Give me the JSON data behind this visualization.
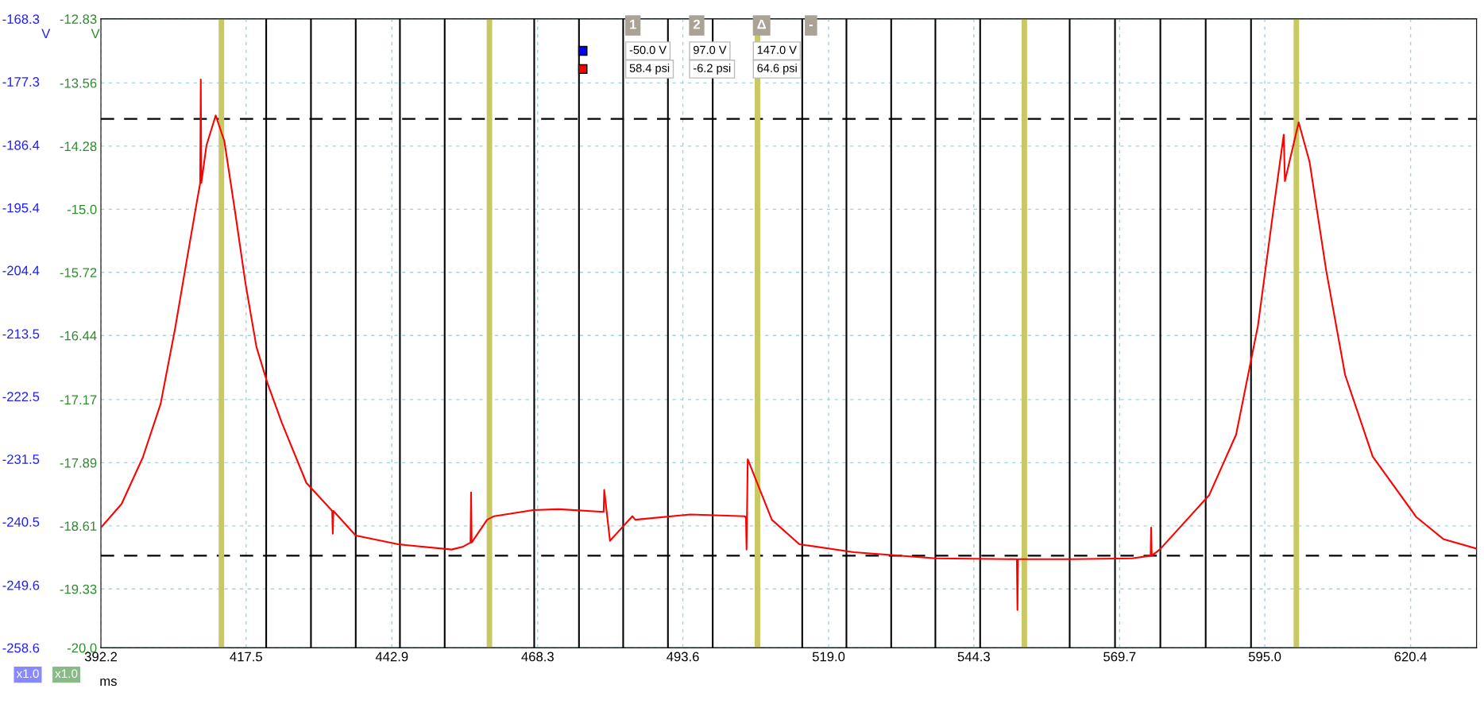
{
  "chart_data": {
    "type": "line",
    "xlabel": "ms",
    "ylabel": "V",
    "y2label": "V",
    "xlim": [
      392.2,
      631.9
    ],
    "xticks": [
      392.2,
      417.5,
      442.9,
      468.3,
      493.6,
      {
        "value": 519.0,
        "label": "519.0"
      },
      544.3,
      569.7,
      {
        "value": 595.0,
        "label": "595.0"
      },
      620.4
    ],
    "ylim": [
      -20.0,
      -12.83
    ],
    "yticks": [
      {
        "value": -20.0,
        "label": "-20.0"
      },
      -19.33,
      -18.61,
      -17.89,
      -17.17,
      -16.44,
      -15.72,
      {
        "value": -15.0,
        "label": "-15.0"
      },
      -14.28,
      -13.56,
      -12.83
    ],
    "y2lim": [
      -258.6,
      -168.3
    ],
    "y2ticks": [
      -258.6,
      -249.6,
      -240.5,
      -231.5,
      -222.5,
      -213.5,
      -204.4,
      -195.4,
      -186.4,
      -177.3,
      -168.3
    ],
    "grid": true,
    "line_style": "solid",
    "marker": "none",
    "series": [
      {
        "color": "#ff0000",
        "x": [
          392.2,
          395.8,
          399.5,
          402.6,
          405.1,
          406.9,
          408.8,
          409.5,
          409.6,
          409.7,
          410.6,
          412.2,
          413.7,
          415.6,
          417.4,
          419.3,
          421.2,
          423.7,
          428.0,
          432.5,
          432.6,
          432.7,
          436.6,
          444.0,
          453.3,
          455.2,
          456.6,
          456.7,
          456.8,
          459.5,
          460.7,
          467.5,
          472.0,
          479.8,
          479.9,
          480.9,
          484.8,
          485.3,
          494.9,
          504.4,
          504.6,
          504.7,
          504.9,
          509.1,
          513.9,
          523.4,
          537.7,
          551.8,
          551.9,
          552.0,
          561.4,
          571.9,
          575.1,
          575.2,
          575.3,
          576.7,
          585.3,
          590.0,
          593.8,
          596.6,
          598.3,
          598.5,
          600.9,
          602.8,
          605.7,
          609.0,
          613.8,
          621.4,
          626.1,
          631.9
        ],
        "values": [
          -18.63,
          -18.36,
          -17.83,
          -17.22,
          -16.37,
          -15.68,
          -14.96,
          -14.7,
          -13.52,
          -14.7,
          -14.27,
          -13.93,
          -14.22,
          -15.04,
          -15.85,
          -16.57,
          -16.98,
          -17.43,
          -18.12,
          -18.44,
          -18.7,
          -18.44,
          -18.72,
          -18.82,
          -18.88,
          -18.85,
          -18.8,
          -18.23,
          -18.8,
          -18.54,
          -18.5,
          -18.43,
          -18.42,
          -18.45,
          -18.2,
          -18.78,
          -18.5,
          -18.54,
          -18.48,
          -18.5,
          -18.52,
          -18.88,
          -17.85,
          -18.54,
          -18.82,
          -18.91,
          -18.98,
          -18.99,
          -19.57,
          -18.99,
          -18.99,
          -18.98,
          -18.95,
          -18.63,
          -18.95,
          -18.88,
          -18.26,
          -17.57,
          -16.33,
          -14.96,
          -14.15,
          -14.68,
          -14.01,
          -14.46,
          -15.7,
          -16.89,
          -17.82,
          -18.51,
          -18.76,
          -18.87
        ]
      }
    ],
    "ref_lines": [
      {
        "axis": "y",
        "value": -13.97,
        "color": "#000000",
        "line_style": "dashed"
      },
      {
        "axis": "y",
        "value": -18.95,
        "color": "#000000",
        "line_style": "dashed"
      },
      {
        "axis": "x",
        "value": 413.2,
        "color": "#c8c864"
      },
      {
        "axis": "x",
        "value": 421.0,
        "color": "#000000"
      },
      {
        "axis": "x",
        "value": 428.8,
        "color": "#000000"
      },
      {
        "axis": "x",
        "value": 436.6,
        "color": "#000000"
      },
      {
        "axis": "x",
        "value": 444.3,
        "color": "#000000"
      },
      {
        "axis": "x",
        "value": 452.1,
        "color": "#000000"
      },
      {
        "axis": "x",
        "value": 459.9,
        "color": "#c8c864"
      },
      {
        "axis": "x",
        "value": 467.7,
        "color": "#000000"
      },
      {
        "axis": "x",
        "value": 475.5,
        "color": "#000000"
      },
      {
        "axis": "x",
        "value": 483.2,
        "color": "#000000"
      },
      {
        "axis": "x",
        "value": 491.0,
        "color": "#000000"
      },
      {
        "axis": "x",
        "value": 498.8,
        "color": "#000000"
      },
      {
        "axis": "x",
        "value": 506.6,
        "color": "#c8c864"
      },
      {
        "axis": "x",
        "value": 514.4,
        "color": "#000000"
      },
      {
        "axis": "x",
        "value": 522.1,
        "color": "#000000"
      },
      {
        "axis": "x",
        "value": 529.9,
        "color": "#000000"
      },
      {
        "axis": "x",
        "value": 537.6,
        "color": "#000000"
      },
      {
        "axis": "x",
        "value": 545.4,
        "color": "#000000"
      },
      {
        "axis": "x",
        "value": 553.1,
        "color": "#c8c864"
      },
      {
        "axis": "x",
        "value": 561.0,
        "color": "#000000"
      },
      {
        "axis": "x",
        "value": 568.9,
        "color": "#000000"
      },
      {
        "axis": "x",
        "value": 576.8,
        "color": "#000000"
      },
      {
        "axis": "x",
        "value": 584.7,
        "color": "#000000"
      },
      {
        "axis": "x",
        "value": 592.6,
        "color": "#000000"
      },
      {
        "axis": "x",
        "value": 600.5,
        "color": "#c8c864"
      }
    ],
    "annotations": [
      "1",
      "2",
      "Δ",
      "-",
      "-50.0 V",
      "97.0 V",
      "147.0 V",
      "58.4 psi",
      "-6.2 psi",
      "64.6 psi",
      "x1.0",
      "x1.0"
    ]
  }
}
